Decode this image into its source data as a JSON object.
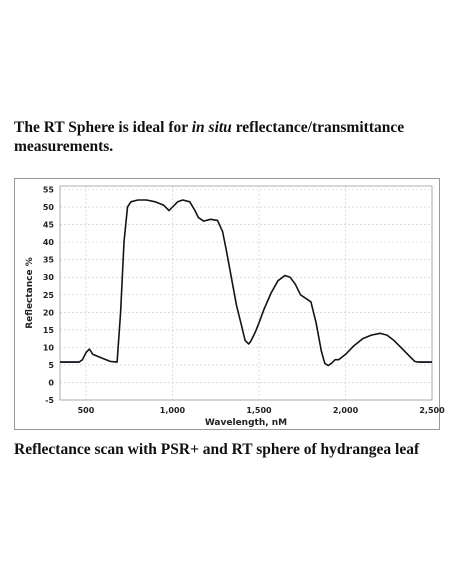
{
  "heading": {
    "before": "The RT Sphere is ideal for ",
    "italic": "in situ",
    "after": " reflectance/transmittance measurements."
  },
  "caption": "Reflectance scan with PSR+ and RT sphere of hydrangea leaf",
  "colors": {
    "line": "#141414",
    "flat_segments": "#4b3a8c",
    "gridline": "#c8c8c8",
    "border": "#9a9a9a"
  },
  "chart_data": {
    "type": "line",
    "title": "",
    "xlabel": "Wavelength, nM",
    "ylabel": "Reflectance %",
    "xlim": [
      350,
      2500
    ],
    "ylim": [
      -5,
      56
    ],
    "grid": true,
    "x_ticks": [
      500,
      1000,
      1500,
      2000,
      2500
    ],
    "x_tick_labels": [
      "500",
      "1,000",
      "1,500",
      "2,000",
      "2,500"
    ],
    "y_ticks": [
      -5,
      0,
      5,
      10,
      15,
      20,
      25,
      30,
      35,
      40,
      45,
      50,
      55
    ],
    "y_tick_labels": [
      "-5",
      "0",
      "5",
      "10",
      "15",
      "20",
      "25",
      "30",
      "35",
      "40",
      "45",
      "50",
      "55"
    ],
    "series": [
      {
        "x": [
          350,
          460,
          480,
          500,
          520,
          540,
          600,
          640,
          680,
          700,
          720,
          740,
          760,
          800,
          850,
          900,
          950,
          980,
          1000,
          1030,
          1060,
          1100,
          1130,
          1150,
          1180,
          1220,
          1260,
          1290,
          1310,
          1340,
          1370,
          1400,
          1420,
          1440,
          1450,
          1460,
          1480,
          1500,
          1530,
          1570,
          1610,
          1650,
          1680,
          1710,
          1740,
          1770,
          1800,
          1830,
          1860,
          1880,
          1900,
          1920,
          1940,
          1960,
          2000,
          2050,
          2100,
          2150,
          2200,
          2240,
          2280,
          2320,
          2360,
          2400,
          2420,
          2500
        ],
        "y": [
          5.8,
          5.8,
          6.5,
          8.5,
          9.5,
          8.0,
          6.8,
          6.0,
          5.8,
          20,
          40,
          50,
          51.5,
          52,
          52,
          51.5,
          50.5,
          49,
          50,
          51.5,
          52,
          51.5,
          49,
          47,
          46,
          46.5,
          46.2,
          43,
          38,
          30,
          22,
          16,
          12,
          11,
          11.5,
          12.5,
          14.5,
          17,
          21,
          25.5,
          29,
          30.5,
          30,
          28,
          25,
          24,
          23,
          17,
          9,
          5.5,
          4.8,
          5.5,
          6.5,
          6.5,
          8,
          10.5,
          12.5,
          13.5,
          14,
          13.5,
          12,
          10,
          8,
          6,
          5.8,
          5.8
        ]
      }
    ]
  }
}
